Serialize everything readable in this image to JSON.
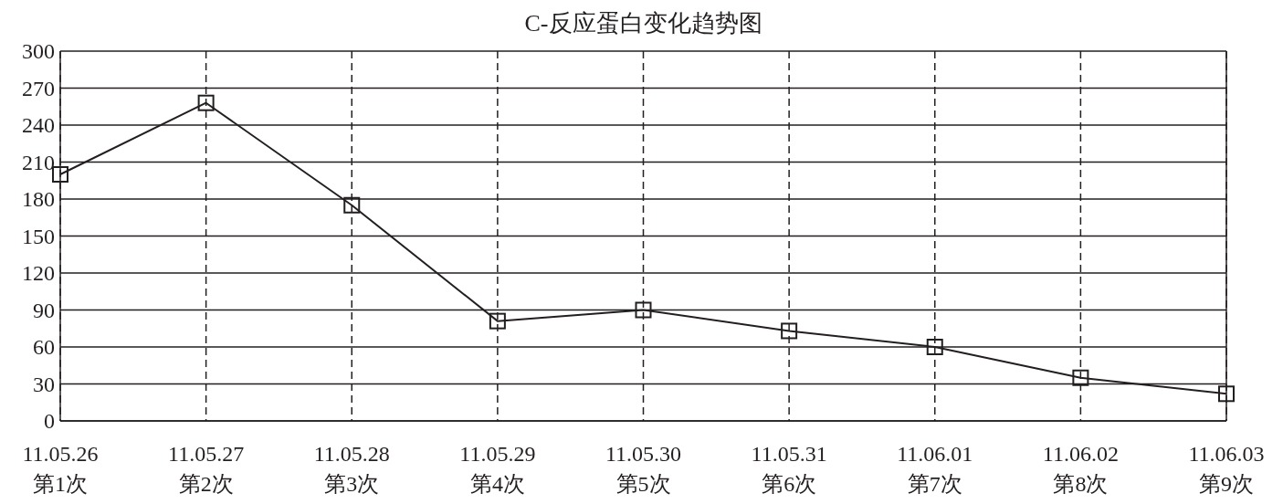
{
  "chart_data": {
    "type": "line",
    "title": "C-反应蛋白变化趋势图",
    "categories": [
      "11.05.26\n第1次",
      "11.05.27\n第2次",
      "11.05.28\n第3次",
      "11.05.29\n第4次",
      "11.05.30\n第5次",
      "11.05.31\n第6次",
      "11.06.01\n第7次",
      "11.06.02\n第8次",
      "11.06.03\n第9次"
    ],
    "series": [
      {
        "color": "#231f20",
        "values": [
          200,
          258,
          175,
          81,
          90,
          73,
          60,
          35,
          22
        ]
      }
    ],
    "ylim": [
      0,
      300
    ],
    "yticks": [
      0,
      30,
      60,
      90,
      120,
      150,
      180,
      210,
      240,
      270,
      300
    ],
    "grid": true,
    "marker": "square",
    "line_style": "solid"
  }
}
